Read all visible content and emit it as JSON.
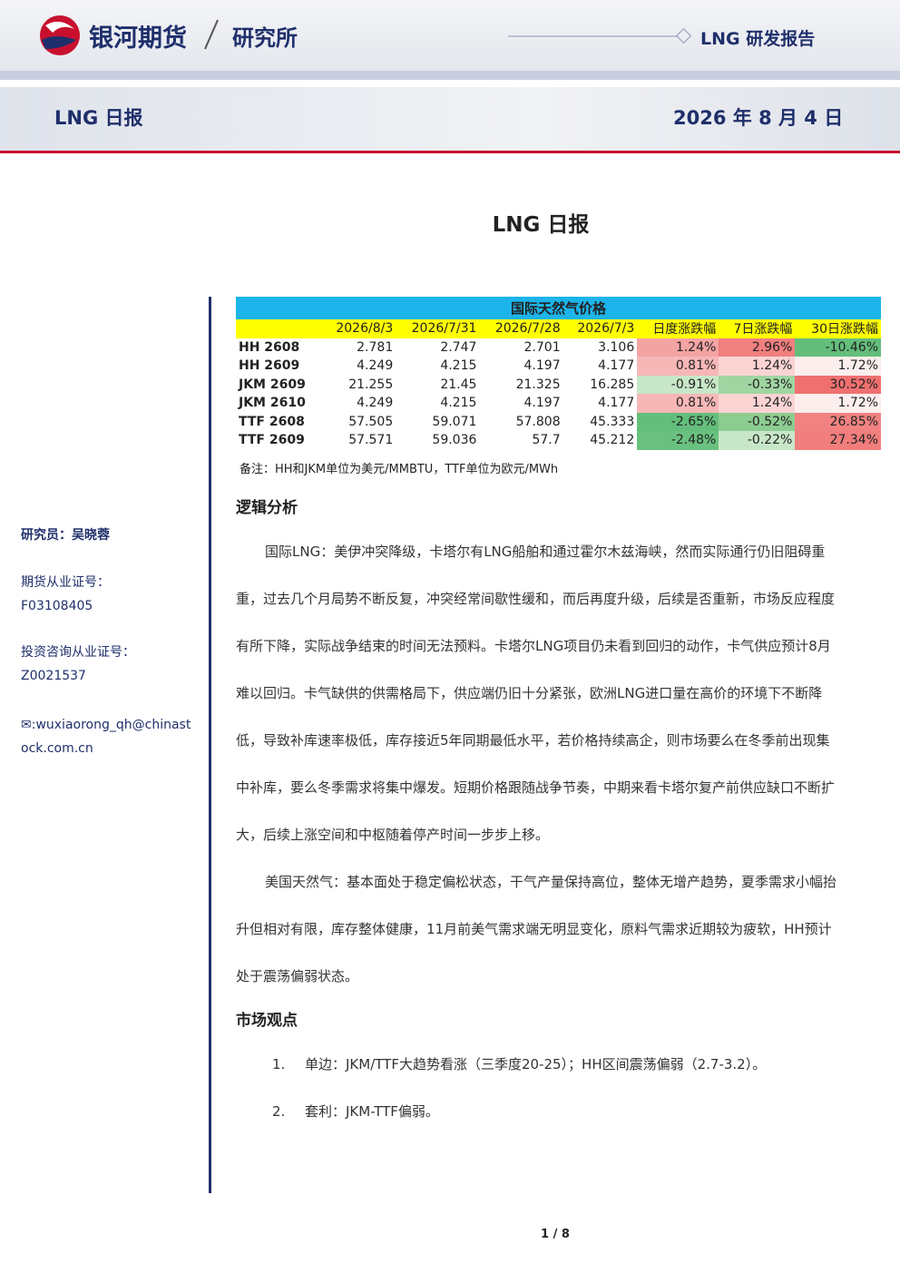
{
  "header": {
    "brand": "银河期货",
    "dept": "研究所",
    "report_type": "LNG 研发报告"
  },
  "banner": {
    "title": "LNG 日报",
    "date": "2026 年 8 月 4 日"
  },
  "title": "LNG 日报",
  "sidebar": {
    "researcher": "研究员：吴晓蓉",
    "license_label": "期货从业证号：",
    "license": "F03108405",
    "advisory_label": "投资咨询从业证号：",
    "advisory": "Z0021537",
    "email": "✉:wuxiaorong_qh@chinastock.com.cn"
  },
  "table": {
    "title": "国际天然气价格",
    "columns": [
      "2026/8/3",
      "2026/7/31",
      "2026/7/28",
      "2026/7/3",
      "日度涨跌幅",
      "7日涨跌幅",
      "30日涨跌幅"
    ],
    "rows": [
      {
        "name": "HH 2608",
        "cells": [
          "2.781",
          "2.747",
          "2.701",
          "3.106",
          "1.24%",
          "2.96%",
          "-10.46%"
        ],
        "colors": [
          "#f4a3a3",
          "#f07f7f",
          "#63be7b"
        ]
      },
      {
        "name": "HH 2609",
        "cells": [
          "4.249",
          "4.215",
          "4.197",
          "4.177",
          "0.81%",
          "1.24%",
          "1.72%"
        ],
        "colors": [
          "#f7b7b7",
          "#fad3d3",
          "#fdeeee"
        ]
      },
      {
        "name": "JKM 2609",
        "cells": [
          "21.255",
          "21.45",
          "21.325",
          "16.285",
          "-0.91%",
          "-0.33%",
          "30.52%"
        ],
        "colors": [
          "#c8e7c8",
          "#a0d5a2",
          "#f07070"
        ]
      },
      {
        "name": "JKM 2610",
        "cells": [
          "4.249",
          "4.215",
          "4.197",
          "4.177",
          "0.81%",
          "1.24%",
          "1.72%"
        ],
        "colors": [
          "#f7b7b7",
          "#fad3d3",
          "#fdeeee"
        ]
      },
      {
        "name": "TTF 2608",
        "cells": [
          "57.505",
          "59.071",
          "57.808",
          "45.333",
          "-2.65%",
          "-0.52%",
          "26.85%"
        ],
        "colors": [
          "#63be7b",
          "#8dcc90",
          "#f28282"
        ]
      },
      {
        "name": "TTF 2609",
        "cells": [
          "57.571",
          "59.036",
          "57.7",
          "45.212",
          "-2.48%",
          "-0.22%",
          "27.34%"
        ],
        "colors": [
          "#6ac17f",
          "#c8e7c8",
          "#f27d7d"
        ]
      }
    ],
    "note": "备注：HH和JKM单位为美元/MMBTU，TTF单位为欧元/MWh"
  },
  "sections": [
    {
      "heading": "逻辑分析",
      "paragraphs": [
        "国际LNG：美伊冲突降级，卡塔尔有LNG船舶和通过霍尔木兹海峡，然而实际通行仍旧阻碍重重，过去几个月局势不断反复，冲突经常间歇性缓和，而后再度升级，后续是否重新，市场反应程度有所下降，实际战争结束的时间无法预料。卡塔尔LNG项目仍未看到回归的动作，卡气供应预计8月难以回归。卡气缺供的供需格局下，供应端仍旧十分紧张，欧洲LNG进口量在高价的环境下不断降低，导致补库速率极低，库存接近5年同期最低水平，若价格持续高企，则市场要么在冬季前出现集中补库，要么冬季需求将集中爆发。短期价格跟随战争节奏，中期来看卡塔尔复产前供应缺口不断扩大，后续上涨空间和中枢随着停产时间一步步上移。",
        "美国天然气：基本面处于稳定偏松状态，干气产量保持高位，整体无增产趋势，夏季需求小幅抬升但相对有限，库存整体健康，11月前美气需求端无明显变化，原料气需求近期较为疲软，HH预计处于震荡偏弱状态。"
      ]
    },
    {
      "heading": "市场观点",
      "items": [
        {
          "num": "1.",
          "text": "单边：JKM/TTF大趋势看涨（三季度20-25）；HH区间震荡偏弱（2.7-3.2）。"
        },
        {
          "num": "2.",
          "text": "套利：JKM-TTF偏弱。"
        }
      ]
    }
  ],
  "footer": {
    "page": "1 / 8"
  }
}
